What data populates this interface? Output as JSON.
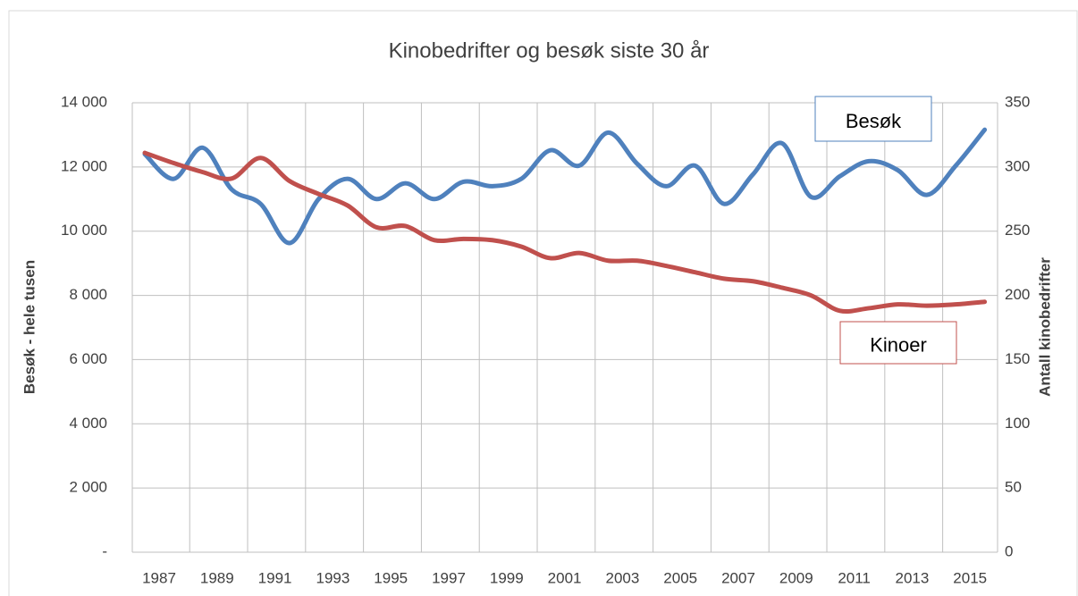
{
  "chart_data": {
    "type": "line",
    "title": "Kinobedrifter og besøk siste 30 år",
    "ylabel": "Besøk - hele tusen",
    "y2label": "Antall kinobedrifter",
    "categories": [
      "1987",
      null,
      "1989",
      null,
      "1991",
      null,
      "1993",
      null,
      "1995",
      null,
      "1997",
      null,
      "1999",
      null,
      "2001",
      null,
      "2003",
      null,
      "2005",
      null,
      "2007",
      null,
      "2009",
      null,
      "2011",
      null,
      "2013",
      null,
      "2015",
      null
    ],
    "series": [
      {
        "name": "Besøk",
        "color": "#4f81bd",
        "values": [
          12400,
          11630,
          12600,
          11300,
          10850,
          9630,
          11000,
          11630,
          11000,
          11490,
          11000,
          11540,
          11400,
          11630,
          12520,
          12040,
          13070,
          12100,
          11400,
          12040,
          10850,
          11770,
          12740,
          11070,
          11710,
          12180,
          11900,
          11130,
          12040,
          13160
        ]
      },
      {
        "name": "Kinoer",
        "color": "#c0504d",
        "axis": "y2",
        "values": [
          311,
          303,
          296,
          291,
          307,
          289,
          279,
          270,
          253,
          254,
          243,
          244,
          243,
          238,
          229,
          233,
          227,
          227,
          223,
          218,
          213,
          211,
          206,
          200,
          188,
          190,
          193,
          192,
          193,
          195
        ]
      }
    ],
    "ylim": [
      0,
      14000
    ],
    "yticks": [
      {
        "value": 0,
        "label": "-"
      },
      {
        "value": 2000,
        "label": "2 000"
      },
      {
        "value": 4000,
        "label": "4 000"
      },
      {
        "value": 6000,
        "label": "6 000"
      },
      {
        "value": 8000,
        "label": "8 000"
      },
      {
        "value": 10000,
        "label": "10 000"
      },
      {
        "value": 12000,
        "label": "12 000"
      },
      {
        "value": 14000,
        "label": "14 000"
      }
    ],
    "y2lim": [
      0,
      350
    ],
    "y2ticks": [
      0,
      50,
      100,
      150,
      200,
      250,
      300,
      350
    ],
    "grid": true
  }
}
